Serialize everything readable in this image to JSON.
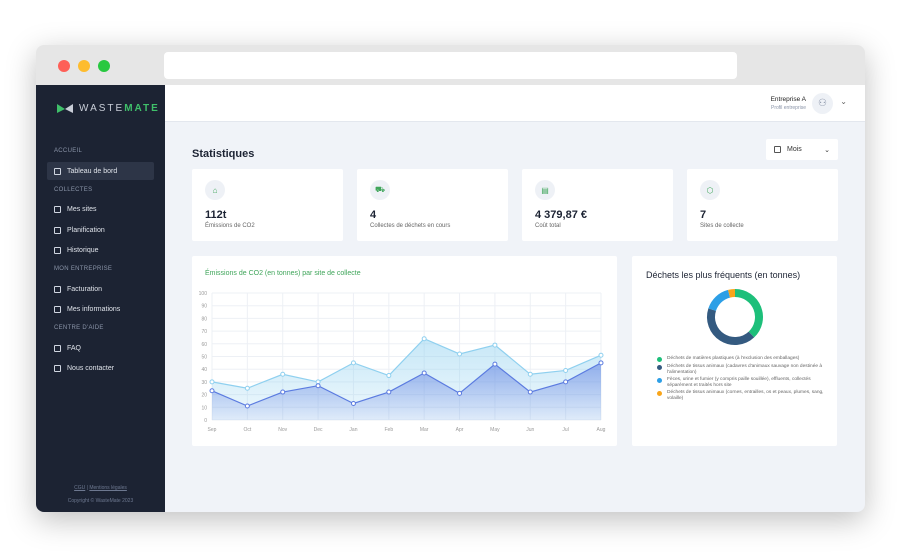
{
  "brand": {
    "name_a": "WASTE",
    "name_b": "MATE"
  },
  "sidebar": {
    "sections": [
      {
        "title": "ACCUEIL",
        "items": [
          {
            "label": "Tableau de bord",
            "icon": "grid-icon",
            "active": true
          }
        ]
      },
      {
        "title": "COLLECTES",
        "items": [
          {
            "label": "Mes sites",
            "icon": "box-icon"
          },
          {
            "label": "Planification",
            "icon": "calendar-icon"
          },
          {
            "label": "Historique",
            "icon": "history-icon"
          }
        ]
      },
      {
        "title": "MON ENTREPRISE",
        "items": [
          {
            "label": "Facturation",
            "icon": "invoice-icon"
          },
          {
            "label": "Mes informations",
            "icon": "user-settings-icon"
          }
        ]
      },
      {
        "title": "CENTRE D'AIDE",
        "items": [
          {
            "label": "FAQ",
            "icon": "faq-icon"
          },
          {
            "label": "Nous contacter",
            "icon": "mail-icon"
          }
        ]
      }
    ],
    "footer": {
      "cgu": "CGU",
      "sep": "|",
      "legal": "Mentions légales",
      "copyright": "Copyright © WasteMate 2023"
    }
  },
  "header": {
    "company": "Entreprise A",
    "profile": "Profil entreprise"
  },
  "page": {
    "title": "Statistiques",
    "period": "Mois"
  },
  "stats": [
    {
      "value": "112t",
      "label": "Émissions de CO2",
      "icon": "factory-icon"
    },
    {
      "value": "4",
      "label": "Collectes de déchets en cours",
      "icon": "truck-icon"
    },
    {
      "value": "4 379,87 €",
      "label": "Coût total",
      "icon": "invoice-icon"
    },
    {
      "value": "7",
      "label": "Sites de collecte",
      "icon": "box-icon"
    }
  ],
  "colors": {
    "accent": "#3fa55a",
    "sidebar": "#1c2333",
    "series1": "#8fd0ef",
    "series2": "#5b7be0"
  },
  "chart_data": [
    {
      "type": "area",
      "title": "Émissions de CO2 (en tonnes) par site de collecte",
      "categories": [
        "Sep",
        "Oct",
        "Nov",
        "Dec",
        "Jan",
        "Feb",
        "Mar",
        "Apr",
        "May",
        "Jun",
        "Jul",
        "Aug"
      ],
      "ylim": [
        0,
        100
      ],
      "yticks": [
        0,
        10,
        20,
        30,
        40,
        50,
        60,
        70,
        80,
        90,
        100
      ],
      "grid": true,
      "series": [
        {
          "values": [
            30,
            25,
            36,
            30,
            45,
            35,
            64,
            52,
            59,
            36,
            39,
            51
          ],
          "color": "#8fd0ef"
        },
        {
          "values": [
            23,
            11,
            22,
            27,
            13,
            22,
            37,
            21,
            44,
            22,
            30,
            45
          ],
          "color": "#5b7be0"
        }
      ]
    },
    {
      "type": "pie",
      "title": "Déchets les plus fréquents (en tonnes)",
      "legend": "bottom",
      "slices": [
        {
          "label": "Déchets de matières plastiques (à l'exclusion des emballages)",
          "value": 38,
          "color": "#1dbf7a"
        },
        {
          "label": "Déchets de tissus animaux (cadavres d'animaux sauvage non destinée à l'alimentation)",
          "value": 42,
          "color": "#345a80"
        },
        {
          "label": "Fèces, urine et fumier (y compris paille souillée), effluents, collectés séparément et traités hors site",
          "value": 16,
          "color": "#2d9fe6"
        },
        {
          "label": "Déchets de tissus animaux (cornes, entrailles, os et peaux, plumes, sang, volaille)",
          "value": 4,
          "color": "#f9a51a"
        }
      ]
    }
  ]
}
